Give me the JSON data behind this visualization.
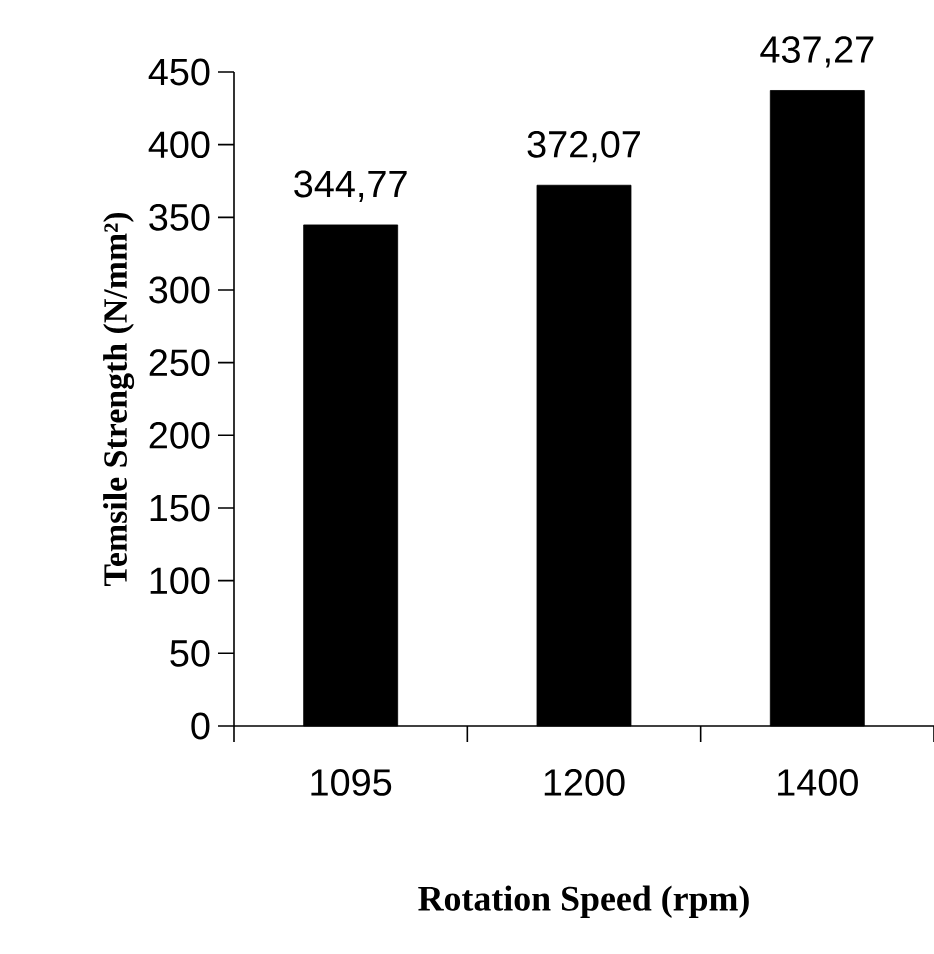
{
  "chart_data": {
    "type": "bar",
    "xlabel": "Rotation Speed (rpm)",
    "ylabel": "Temsile Strength (N/mm²)",
    "categories": [
      "1095",
      "1200",
      "1400"
    ],
    "values": [
      344.77,
      372.07,
      437.27
    ],
    "value_labels": [
      "344,77",
      "372,07",
      "437,27"
    ],
    "color": "#000000",
    "ylim": [
      0,
      450
    ],
    "yticks": [
      0,
      50,
      100,
      150,
      200,
      250,
      300,
      350,
      400,
      450
    ],
    "grid": false
  }
}
